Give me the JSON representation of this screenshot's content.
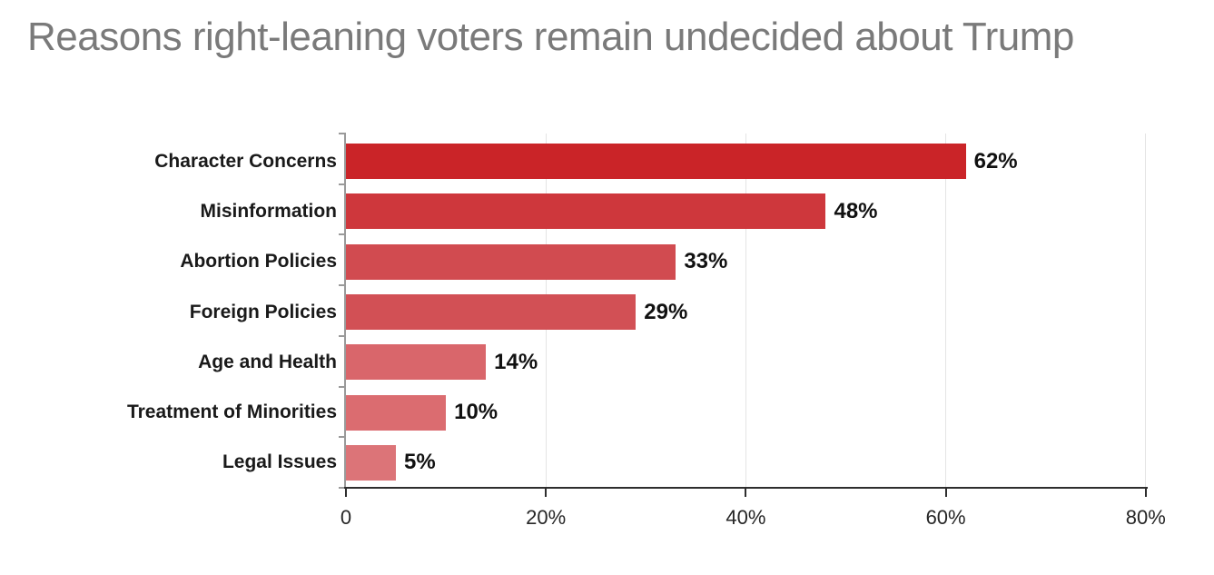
{
  "title": "Reasons right-leaning voters remain undecided about Trump",
  "colors": {
    "background": "#ffffff",
    "title_text": "#7a7a7a",
    "category_text": "#1a1a1a",
    "value_text": "#111111",
    "axis_line": "#2e2e2e",
    "category_spine": "#9a9a9a",
    "gridline": "#e4e4e4"
  },
  "chart_data": {
    "type": "bar",
    "orientation": "horizontal",
    "title": "Reasons right-leaning voters remain undecided about Trump",
    "categories": [
      "Character Concerns",
      "Misinformation",
      "Abortion Policies",
      "Foreign Policies",
      "Age and Health",
      "Treatment of Minorities",
      "Legal Issues"
    ],
    "values": [
      62,
      48,
      33,
      29,
      14,
      10,
      5
    ],
    "value_labels": [
      "62%",
      "48%",
      "33%",
      "29%",
      "14%",
      "10%",
      "5%"
    ],
    "bar_colors": [
      "#CA2428",
      "#CE373C",
      "#D14B50",
      "#D25055",
      "#D9666B",
      "#DB6C70",
      "#DC7478"
    ],
    "xlabel": "",
    "ylabel": "",
    "xlim": [
      0,
      80
    ],
    "x_ticks": [
      0,
      20,
      40,
      60,
      80
    ],
    "x_tick_labels": [
      "0",
      "20%",
      "40%",
      "60%",
      "80%"
    ],
    "grid": "vertical gridlines at each x tick",
    "legend_position": "none"
  }
}
